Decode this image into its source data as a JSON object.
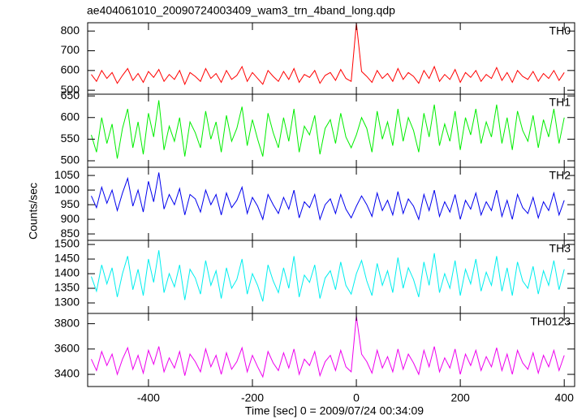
{
  "chart_data": [
    {
      "type": "line",
      "title": "ae404061010_20090724003409_wam3_trn_4band_long.qdp",
      "xlim": [
        -517,
        420
      ],
      "xticks": [
        -400,
        -200,
        0,
        200,
        400
      ],
      "ylim": [
        480,
        842
      ],
      "yticks": [
        500,
        600,
        700,
        800
      ],
      "x": [
        -510,
        -500,
        -490,
        -480,
        -470,
        -460,
        -450,
        -440,
        -430,
        -420,
        -410,
        -400,
        -390,
        -380,
        -370,
        -360,
        -350,
        -340,
        -330,
        -320,
        -310,
        -300,
        -290,
        -280,
        -270,
        -260,
        -250,
        -240,
        -230,
        -220,
        -210,
        -200,
        -190,
        -180,
        -170,
        -160,
        -150,
        -140,
        -130,
        -120,
        -110,
        -100,
        -90,
        -80,
        -70,
        -60,
        -50,
        -40,
        -30,
        -20,
        -10,
        0,
        10,
        20,
        30,
        40,
        50,
        60,
        70,
        80,
        90,
        100,
        110,
        120,
        130,
        140,
        150,
        160,
        170,
        180,
        190,
        200,
        210,
        220,
        230,
        240,
        250,
        260,
        270,
        280,
        290,
        300,
        310,
        320,
        330,
        340,
        350,
        360,
        370,
        380,
        390,
        400
      ],
      "series": [
        {
          "name": "TH0",
          "color": "#ff0000",
          "values": [
            580,
            545,
            600,
            560,
            590,
            535,
            575,
            610,
            550,
            585,
            540,
            595,
            565,
            605,
            545,
            580,
            555,
            600,
            530,
            590,
            570,
            545,
            610,
            560,
            585,
            540,
            600,
            555,
            575,
            620,
            545,
            590,
            560,
            530,
            600,
            570,
            545,
            595,
            555,
            610,
            540,
            580,
            565,
            600,
            535,
            575,
            590,
            550,
            605,
            560,
            545,
            840,
            595,
            570,
            540,
            600,
            560,
            585,
            545,
            610,
            555,
            590,
            570,
            535,
            600,
            560,
            620,
            545,
            580,
            555,
            605,
            540,
            590,
            565,
            600,
            545,
            580,
            560,
            615,
            550,
            590,
            540,
            600,
            570,
            555,
            595,
            545,
            585,
            560,
            600,
            550,
            590
          ]
        }
      ]
    },
    {
      "type": "line",
      "xlim": [
        -517,
        420
      ],
      "xticks": [
        -400,
        -200,
        0,
        200,
        400
      ],
      "ylim": [
        485,
        654
      ],
      "yticks": [
        500,
        550,
        600,
        650
      ],
      "x": [
        -510,
        -500,
        -490,
        -480,
        -470,
        -460,
        -450,
        -440,
        -430,
        -420,
        -410,
        -400,
        -390,
        -380,
        -370,
        -360,
        -350,
        -340,
        -330,
        -320,
        -310,
        -300,
        -290,
        -280,
        -270,
        -260,
        -250,
        -240,
        -230,
        -220,
        -210,
        -200,
        -190,
        -180,
        -170,
        -160,
        -150,
        -140,
        -130,
        -120,
        -110,
        -100,
        -90,
        -80,
        -70,
        -60,
        -50,
        -40,
        -30,
        -20,
        -10,
        0,
        10,
        20,
        30,
        40,
        50,
        60,
        70,
        80,
        90,
        100,
        110,
        120,
        130,
        140,
        150,
        160,
        170,
        180,
        190,
        200,
        210,
        220,
        230,
        240,
        250,
        260,
        270,
        280,
        290,
        300,
        310,
        320,
        330,
        340,
        350,
        360,
        370,
        380,
        390,
        400
      ],
      "series": [
        {
          "name": "TH1",
          "color": "#00ee00",
          "values": [
            560,
            520,
            600,
            540,
            585,
            505,
            575,
            620,
            530,
            590,
            515,
            610,
            555,
            640,
            525,
            580,
            545,
            600,
            510,
            590,
            565,
            530,
            615,
            550,
            590,
            520,
            605,
            545,
            575,
            625,
            535,
            595,
            550,
            510,
            610,
            565,
            530,
            600,
            545,
            620,
            520,
            580,
            560,
            605,
            515,
            575,
            595,
            540,
            610,
            555,
            530,
            560,
            600,
            575,
            520,
            615,
            550,
            590,
            535,
            620,
            545,
            600,
            570,
            520,
            610,
            555,
            630,
            535,
            585,
            545,
            615,
            525,
            600,
            560,
            620,
            540,
            590,
            555,
            630,
            540,
            600,
            525,
            615,
            570,
            545,
            605,
            530,
            595,
            555,
            620,
            540,
            600
          ]
        }
      ]
    },
    {
      "type": "line",
      "ylabel": "Counts/sec",
      "xlim": [
        -517,
        420
      ],
      "xticks": [
        -400,
        -200,
        0,
        200,
        400
      ],
      "ylim": [
        828,
        1078
      ],
      "yticks": [
        850,
        900,
        950,
        1000,
        1050
      ],
      "x": [
        -510,
        -500,
        -490,
        -480,
        -470,
        -460,
        -450,
        -440,
        -430,
        -420,
        -410,
        -400,
        -390,
        -380,
        -370,
        -360,
        -350,
        -340,
        -330,
        -320,
        -310,
        -300,
        -290,
        -280,
        -270,
        -260,
        -250,
        -240,
        -230,
        -220,
        -210,
        -200,
        -190,
        -180,
        -170,
        -160,
        -150,
        -140,
        -130,
        -120,
        -110,
        -100,
        -90,
        -80,
        -70,
        -60,
        -50,
        -40,
        -30,
        -20,
        -10,
        0,
        10,
        20,
        30,
        40,
        50,
        60,
        70,
        80,
        90,
        100,
        110,
        120,
        130,
        140,
        150,
        160,
        170,
        180,
        190,
        200,
        210,
        220,
        230,
        240,
        250,
        260,
        270,
        280,
        290,
        300,
        310,
        320,
        330,
        340,
        350,
        360,
        370,
        380,
        390,
        400
      ],
      "series": [
        {
          "name": "TH2",
          "color": "#0000ee",
          "values": [
            980,
            940,
            1010,
            955,
            1000,
            930,
            990,
            1040,
            945,
            1000,
            925,
            1030,
            960,
            1060,
            935,
            985,
            950,
            1005,
            915,
            985,
            970,
            925,
            1000,
            950,
            985,
            915,
            990,
            940,
            965,
            1010,
            920,
            975,
            945,
            900,
            985,
            950,
            920,
            975,
            935,
            1000,
            905,
            960,
            940,
            985,
            900,
            950,
            970,
            920,
            985,
            935,
            905,
            945,
            980,
            950,
            910,
            990,
            930,
            965,
            915,
            995,
            920,
            970,
            945,
            900,
            985,
            930,
            1000,
            910,
            960,
            925,
            985,
            900,
            965,
            935,
            990,
            915,
            960,
            930,
            1000,
            910,
            965,
            900,
            985,
            940,
            920,
            975,
            905,
            960,
            930,
            990,
            915,
            965
          ]
        }
      ]
    },
    {
      "type": "line",
      "xlim": [
        -517,
        420
      ],
      "xticks": [
        -400,
        -200,
        0,
        200,
        400
      ],
      "ylim": [
        1264,
        1514
      ],
      "yticks": [
        1300,
        1350,
        1400,
        1450,
        1500
      ],
      "x": [
        -510,
        -500,
        -490,
        -480,
        -470,
        -460,
        -450,
        -440,
        -430,
        -420,
        -410,
        -400,
        -390,
        -380,
        -370,
        -360,
        -350,
        -340,
        -330,
        -320,
        -310,
        -300,
        -290,
        -280,
        -270,
        -260,
        -250,
        -240,
        -230,
        -220,
        -210,
        -200,
        -190,
        -180,
        -170,
        -160,
        -150,
        -140,
        -130,
        -120,
        -110,
        -100,
        -90,
        -80,
        -70,
        -60,
        -50,
        -40,
        -30,
        -20,
        -10,
        0,
        10,
        20,
        30,
        40,
        50,
        60,
        70,
        80,
        90,
        100,
        110,
        120,
        130,
        140,
        150,
        160,
        170,
        180,
        190,
        200,
        210,
        220,
        230,
        240,
        250,
        260,
        270,
        280,
        290,
        300,
        310,
        320,
        330,
        340,
        350,
        360,
        370,
        380,
        390,
        400
      ],
      "series": [
        {
          "name": "TH3",
          "color": "#00eeee",
          "values": [
            1390,
            1340,
            1430,
            1365,
            1420,
            1320,
            1400,
            1460,
            1345,
            1415,
            1325,
            1450,
            1370,
            1480,
            1335,
            1400,
            1355,
            1430,
            1310,
            1415,
            1385,
            1330,
            1445,
            1360,
            1410,
            1315,
            1420,
            1350,
            1380,
            1450,
            1330,
            1400,
            1360,
            1305,
            1430,
            1375,
            1335,
            1420,
            1350,
            1460,
            1320,
            1395,
            1370,
            1430,
            1315,
            1385,
            1410,
            1345,
            1440,
            1360,
            1330,
            1400,
            1445,
            1375,
            1325,
            1435,
            1360,
            1410,
            1335,
            1455,
            1350,
            1420,
            1380,
            1320,
            1440,
            1360,
            1470,
            1335,
            1400,
            1350,
            1445,
            1325,
            1415,
            1365,
            1450,
            1340,
            1405,
            1360,
            1460,
            1340,
            1420,
            1325,
            1440,
            1375,
            1350,
            1425,
            1330,
            1410,
            1360,
            1445,
            1345,
            1415
          ]
        }
      ]
    },
    {
      "type": "line",
      "xlabel": "Time [sec] 0 = 2009/07/24 00:34:09",
      "xlim": [
        -517,
        420
      ],
      "xticks": [
        -400,
        -200,
        0,
        200,
        400
      ],
      "ylim": [
        3304,
        3881
      ],
      "yticks": [
        3400,
        3600,
        3800
      ],
      "x": [
        -510,
        -500,
        -490,
        -480,
        -470,
        -460,
        -450,
        -440,
        -430,
        -420,
        -410,
        -400,
        -390,
        -380,
        -370,
        -360,
        -350,
        -340,
        -330,
        -320,
        -310,
        -300,
        -290,
        -280,
        -270,
        -260,
        -250,
        -240,
        -230,
        -220,
        -210,
        -200,
        -190,
        -180,
        -170,
        -160,
        -150,
        -140,
        -130,
        -120,
        -110,
        -100,
        -90,
        -80,
        -70,
        -60,
        -50,
        -40,
        -30,
        -20,
        -10,
        0,
        10,
        20,
        30,
        40,
        50,
        60,
        70,
        80,
        90,
        100,
        110,
        120,
        130,
        140,
        150,
        160,
        170,
        180,
        190,
        200,
        210,
        220,
        230,
        240,
        250,
        260,
        270,
        280,
        290,
        300,
        310,
        320,
        330,
        340,
        350,
        360,
        370,
        380,
        390,
        400
      ],
      "series": [
        {
          "name": "TH0123",
          "color": "#ee00ee",
          "values": [
            3520,
            3430,
            3580,
            3470,
            3560,
            3400,
            3520,
            3610,
            3440,
            3550,
            3410,
            3590,
            3480,
            3620,
            3420,
            3530,
            3450,
            3580,
            3390,
            3560,
            3500,
            3420,
            3600,
            3460,
            3550,
            3400,
            3570,
            3440,
            3500,
            3610,
            3420,
            3550,
            3460,
            3380,
            3580,
            3490,
            3430,
            3570,
            3450,
            3600,
            3400,
            3520,
            3470,
            3580,
            3390,
            3500,
            3550,
            3430,
            3590,
            3460,
            3420,
            3860,
            3560,
            3500,
            3410,
            3590,
            3450,
            3540,
            3420,
            3600,
            3440,
            3560,
            3490,
            3400,
            3590,
            3460,
            3620,
            3420,
            3530,
            3450,
            3600,
            3400,
            3560,
            3470,
            3590,
            3430,
            3540,
            3460,
            3610,
            3430,
            3560,
            3400,
            3590,
            3490,
            3440,
            3570,
            3410,
            3550,
            3460,
            3590,
            3430,
            3550
          ]
        }
      ]
    }
  ]
}
